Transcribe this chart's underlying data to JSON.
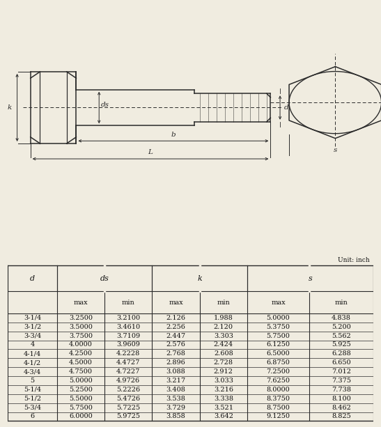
{
  "unit_label": "Unit: inch",
  "rows": [
    [
      "3-1/4",
      "3.2500",
      "3.2100",
      "2.126",
      "1.988",
      "5.0000",
      "4.838"
    ],
    [
      "3-1/2",
      "3.5000",
      "3.4610",
      "2.256",
      "2.120",
      "5.3750",
      "5.200"
    ],
    [
      "3-3/4",
      "3.7500",
      "3.7109",
      "2.447",
      "3.303",
      "5.7500",
      "5.562"
    ],
    [
      "4",
      "4.0000",
      "3.9609",
      "2.576",
      "2.424",
      "6.1250",
      "5.925"
    ],
    [
      "4-1/4",
      "4.2500",
      "4.2228",
      "2.768",
      "2.608",
      "6.5000",
      "6.288"
    ],
    [
      "4-1/2",
      "4.5000",
      "4.4727",
      "2.896",
      "2.728",
      "6.8750",
      "6.650"
    ],
    [
      "4-3/4",
      "4.7500",
      "4.7227",
      "3.088",
      "2.912",
      "7.2500",
      "7.012"
    ],
    [
      "5",
      "5.0000",
      "4.9726",
      "3.217",
      "3.033",
      "7.6250",
      "7.375"
    ],
    [
      "5-1/4",
      "5.2500",
      "5.2226",
      "3.408",
      "3.216",
      "8.0000",
      "7.738"
    ],
    [
      "5-1/2",
      "5.5000",
      "5.4726",
      "3.538",
      "3.338",
      "8.3750",
      "8.100"
    ],
    [
      "5-3/4",
      "5.7500",
      "5.7225",
      "3.729",
      "3.521",
      "8.7500",
      "8.462"
    ],
    [
      "6",
      "6.0000",
      "5.9725",
      "3.858",
      "3.642",
      "9.1250",
      "8.825"
    ]
  ],
  "bg_color": "#f0ece0",
  "line_color": "#2a2a2a",
  "text_color": "#111111",
  "table_font_size": 7.5,
  "fig_width": 5.47,
  "fig_height": 6.13
}
